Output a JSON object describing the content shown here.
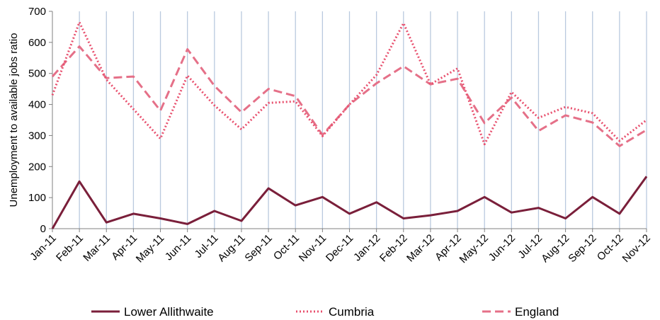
{
  "chart_data": {
    "type": "line",
    "title": "",
    "xlabel": "",
    "ylabel": "Unemployment to available jobs ratio",
    "ylim": [
      0,
      700
    ],
    "yticks": [
      0,
      100,
      200,
      300,
      400,
      500,
      600,
      700
    ],
    "grid": "vertical",
    "legend_position": "bottom",
    "categories": [
      "Jan-11",
      "Feb-11",
      "Mar-11",
      "Apr-11",
      "May-11",
      "Jun-11",
      "Jul-11",
      "Aug-11",
      "Sep-11",
      "Oct-11",
      "Nov-11",
      "Dec-11",
      "Jan-12",
      "Feb-12",
      "Mar-12",
      "Apr-12",
      "May-12",
      "Jun-12",
      "Jul-12",
      "Aug-12",
      "Sep-12",
      "Oct-12",
      "Nov-12"
    ],
    "series": [
      {
        "name": "Lower Allithwaite",
        "style": "solid",
        "color": "#7a1f3a",
        "values": [
          0,
          152,
          20,
          48,
          33,
          15,
          57,
          25,
          130,
          75,
          102,
          48,
          85,
          33,
          43,
          57,
          102,
          52,
          67,
          33,
          102,
          48,
          168
        ]
      },
      {
        "name": "Cumbria",
        "style": "dotted",
        "color": "#e8506e",
        "values": [
          430,
          665,
          480,
          385,
          290,
          493,
          397,
          320,
          405,
          410,
          298,
          400,
          495,
          662,
          465,
          516,
          272,
          440,
          357,
          392,
          372,
          283,
          350
        ]
      },
      {
        "name": "England",
        "style": "dashed",
        "color": "#e57088",
        "values": [
          490,
          587,
          485,
          490,
          380,
          578,
          460,
          375,
          450,
          427,
          302,
          400,
          468,
          523,
          465,
          483,
          340,
          422,
          315,
          365,
          342,
          266,
          318
        ]
      }
    ]
  }
}
